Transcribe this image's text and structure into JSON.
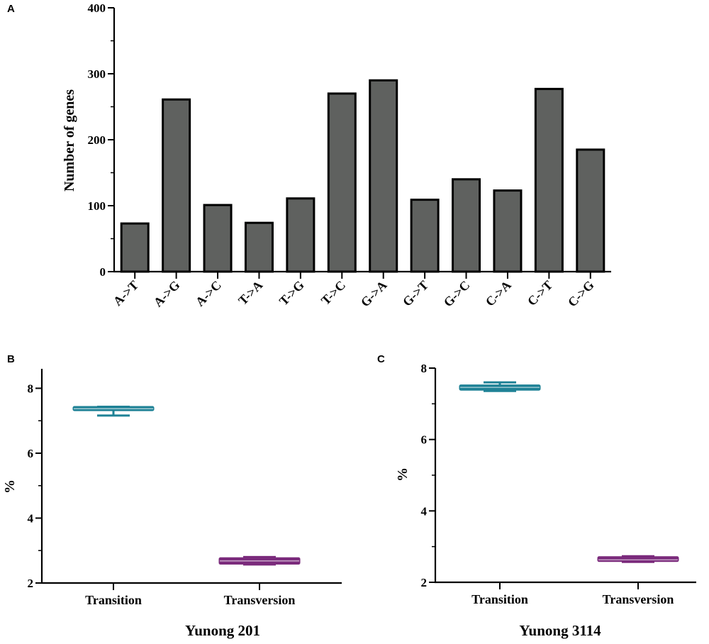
{
  "chart_data": [
    {
      "panel": "A",
      "type": "bar",
      "title": "",
      "xlabel": "",
      "ylabel": "Number of genes",
      "ylim": [
        0,
        400
      ],
      "yticks": [
        0,
        100,
        200,
        300,
        400
      ],
      "categories": [
        "A->T",
        "A->G",
        "A->C",
        "T->A",
        "T->G",
        "T->C",
        "G->A",
        "G->T",
        "G->C",
        "C->A",
        "C->T",
        "C->G"
      ],
      "values": [
        73,
        261,
        101,
        74,
        111,
        270,
        290,
        109,
        140,
        123,
        277,
        185
      ],
      "colors": {
        "bar": "#5f615f",
        "edge": "#000000"
      }
    },
    {
      "panel": "B",
      "type": "box",
      "title": "Yunong 201",
      "ylabel": "%",
      "ylim": [
        2,
        8.6
      ],
      "yticks": [
        2,
        4,
        6,
        8
      ],
      "categories": [
        "Transition",
        "Transversion"
      ],
      "series": [
        {
          "name": "Transition",
          "min": 7.16,
          "q1": 7.33,
          "median": 7.37,
          "q3": 7.42,
          "max": 7.43,
          "color": "#1f8296"
        },
        {
          "name": "Transversion",
          "min": 2.57,
          "q1": 2.6,
          "median": 2.68,
          "q3": 2.76,
          "max": 2.8,
          "color": "#7b2b7c"
        }
      ]
    },
    {
      "panel": "C",
      "type": "box",
      "title": "Yunong 3114",
      "ylabel": "%",
      "ylim": [
        2,
        8
      ],
      "yticks": [
        2,
        4,
        6,
        8
      ],
      "categories": [
        "Transition",
        "Transversion"
      ],
      "series": [
        {
          "name": "Transition",
          "min": 7.36,
          "q1": 7.4,
          "median": 7.46,
          "q3": 7.51,
          "max": 7.6,
          "color": "#1f8296"
        },
        {
          "name": "Transversion",
          "min": 2.57,
          "q1": 2.6,
          "median": 2.63,
          "q3": 2.7,
          "max": 2.73,
          "color": "#7b2b7c"
        }
      ]
    }
  ]
}
